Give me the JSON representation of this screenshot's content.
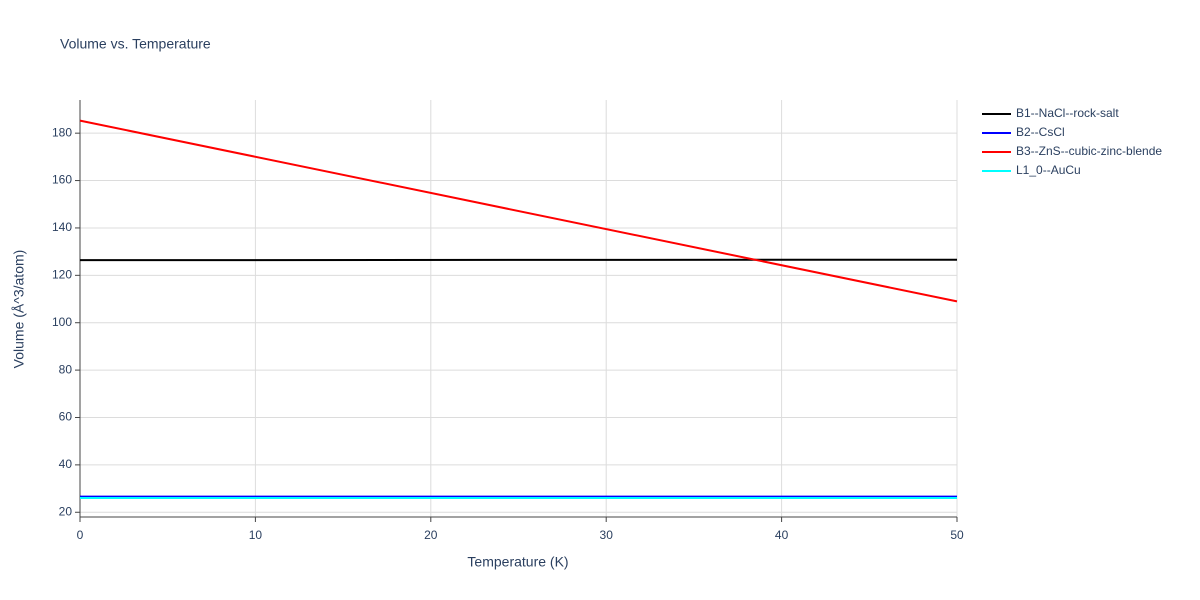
{
  "chart_data": {
    "type": "line",
    "title": "Volume vs. Temperature",
    "x_label": "Temperature (K)",
    "y_label": "Volume (Å^3/atom)",
    "x": [
      0,
      50
    ],
    "series": [
      {
        "name": "B1--NaCl--rock-salt",
        "color": "#000000",
        "values": [
          126.4,
          126.6
        ]
      },
      {
        "name": "B2--CsCl",
        "color": "#0000ff",
        "values": [
          26.6,
          26.6
        ]
      },
      {
        "name": "B3--ZnS--cubic-zinc-blende",
        "color": "#ff0000",
        "values": [
          185.3,
          109.0
        ]
      },
      {
        "name": "L1_0--AuCu",
        "color": "#00ffff",
        "values": [
          26.0,
          26.0
        ]
      }
    ],
    "xlim": [
      0,
      50
    ],
    "xticks": [
      0,
      10,
      20,
      30,
      40,
      50
    ],
    "ylim": [
      18,
      194
    ],
    "yticks": [
      20,
      40,
      60,
      80,
      100,
      120,
      140,
      160,
      180
    ],
    "grid": true,
    "legend": "right"
  }
}
